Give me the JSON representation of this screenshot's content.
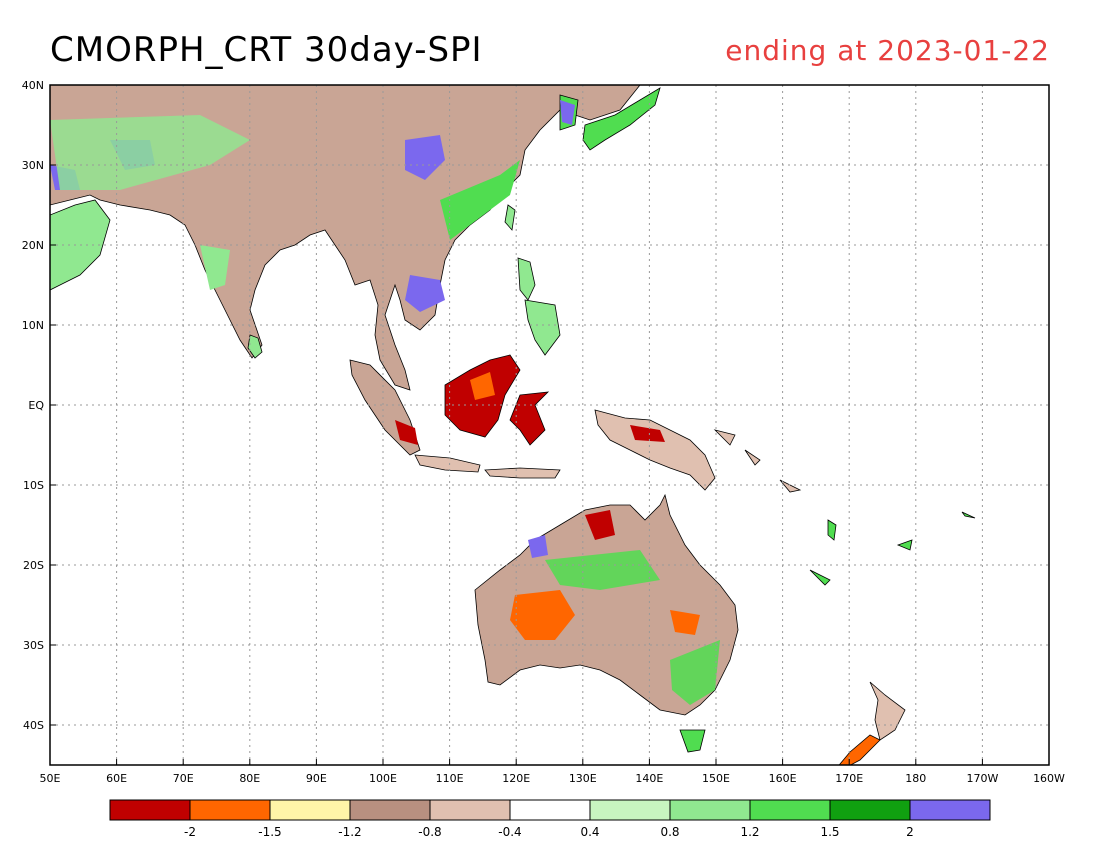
{
  "title": "CMORPH_CRT 30day-SPI",
  "subtitle": "ending at 2023-01-22",
  "subtitle_color": "#e8403f",
  "map": {
    "lon_range": [
      "50E",
      "160W"
    ],
    "lat_range": [
      "45S",
      "40N"
    ],
    "lon_ticks": [
      "50E",
      "60E",
      "70E",
      "80E",
      "90E",
      "100E",
      "110E",
      "120E",
      "130E",
      "140E",
      "150E",
      "160E",
      "170E",
      "180",
      "170W",
      "160W"
    ],
    "lat_ticks": [
      "40N",
      "30N",
      "20N",
      "10N",
      "EQ",
      "10S",
      "20S",
      "30S",
      "40S"
    ],
    "gridlines": "dotted"
  },
  "colorbar": {
    "colors": [
      "#c00000",
      "#ff6600",
      "#fff5a8",
      "#b89080",
      "#e0c0b0",
      "#ffffff",
      "#c8f5c0",
      "#90e890",
      "#50dd50",
      "#10a010",
      "#7b68ee"
    ],
    "labels": [
      "-2",
      "-1.5",
      "-1.2",
      "-0.8",
      "-0.4",
      "0.4",
      "0.8",
      "1.2",
      "1.5",
      "2"
    ]
  }
}
